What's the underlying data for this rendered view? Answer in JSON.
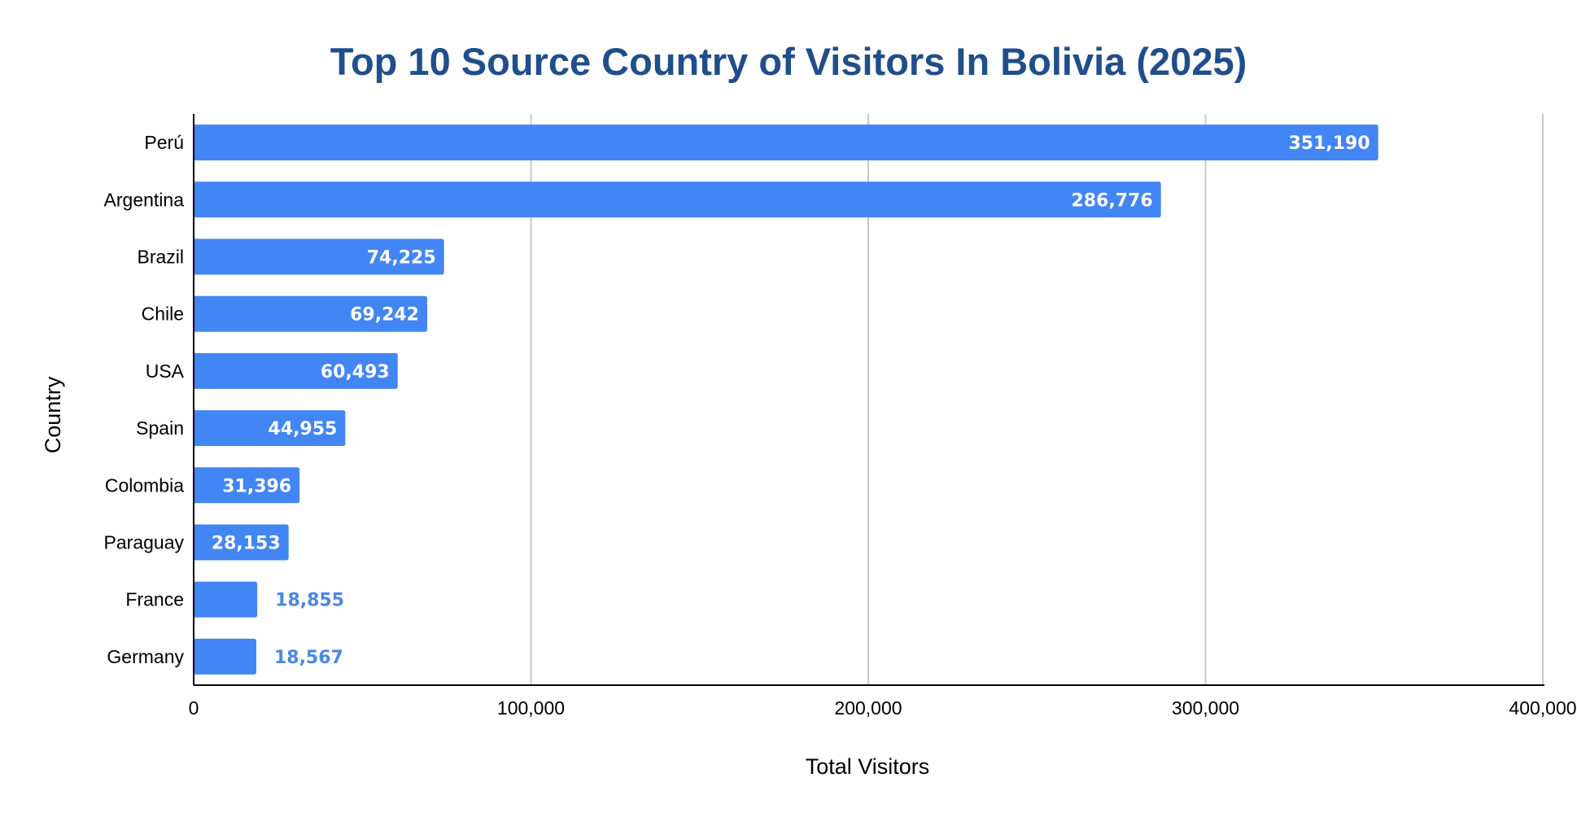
{
  "chart_data": {
    "type": "bar",
    "orientation": "horizontal",
    "title": "Top 10 Source Country of Visitors In Bolivia (2025)",
    "xlabel": "Total Visitors",
    "ylabel": "Country",
    "categories": [
      "Perú",
      "Argentina",
      "Brazil",
      "Chile",
      "USA",
      "Spain",
      "Colombia",
      "Paraguay",
      "France",
      "Germany"
    ],
    "values": [
      351190,
      286776,
      74225,
      69242,
      60493,
      44955,
      31396,
      28153,
      18855,
      18567
    ],
    "data_labels": [
      "351,190",
      "286,776",
      "74,225",
      "69,242",
      "60,493",
      "44,955",
      "31,396",
      "28,153",
      "18,855",
      "18,567"
    ],
    "xlim": [
      0,
      400000
    ],
    "xticks": [
      0,
      100000,
      200000,
      300000,
      400000
    ],
    "xtick_labels": [
      "0",
      "100,000",
      "200,000",
      "300,000",
      "400,000"
    ],
    "grid": "vertical",
    "legend": "none",
    "colors": {
      "bar": "#4285f4",
      "title": "#1f4e8c",
      "label_inside": "#ffffff",
      "label_outside": "#4a86e8",
      "grid": "#c8c8c8",
      "axis": "#000000"
    }
  }
}
